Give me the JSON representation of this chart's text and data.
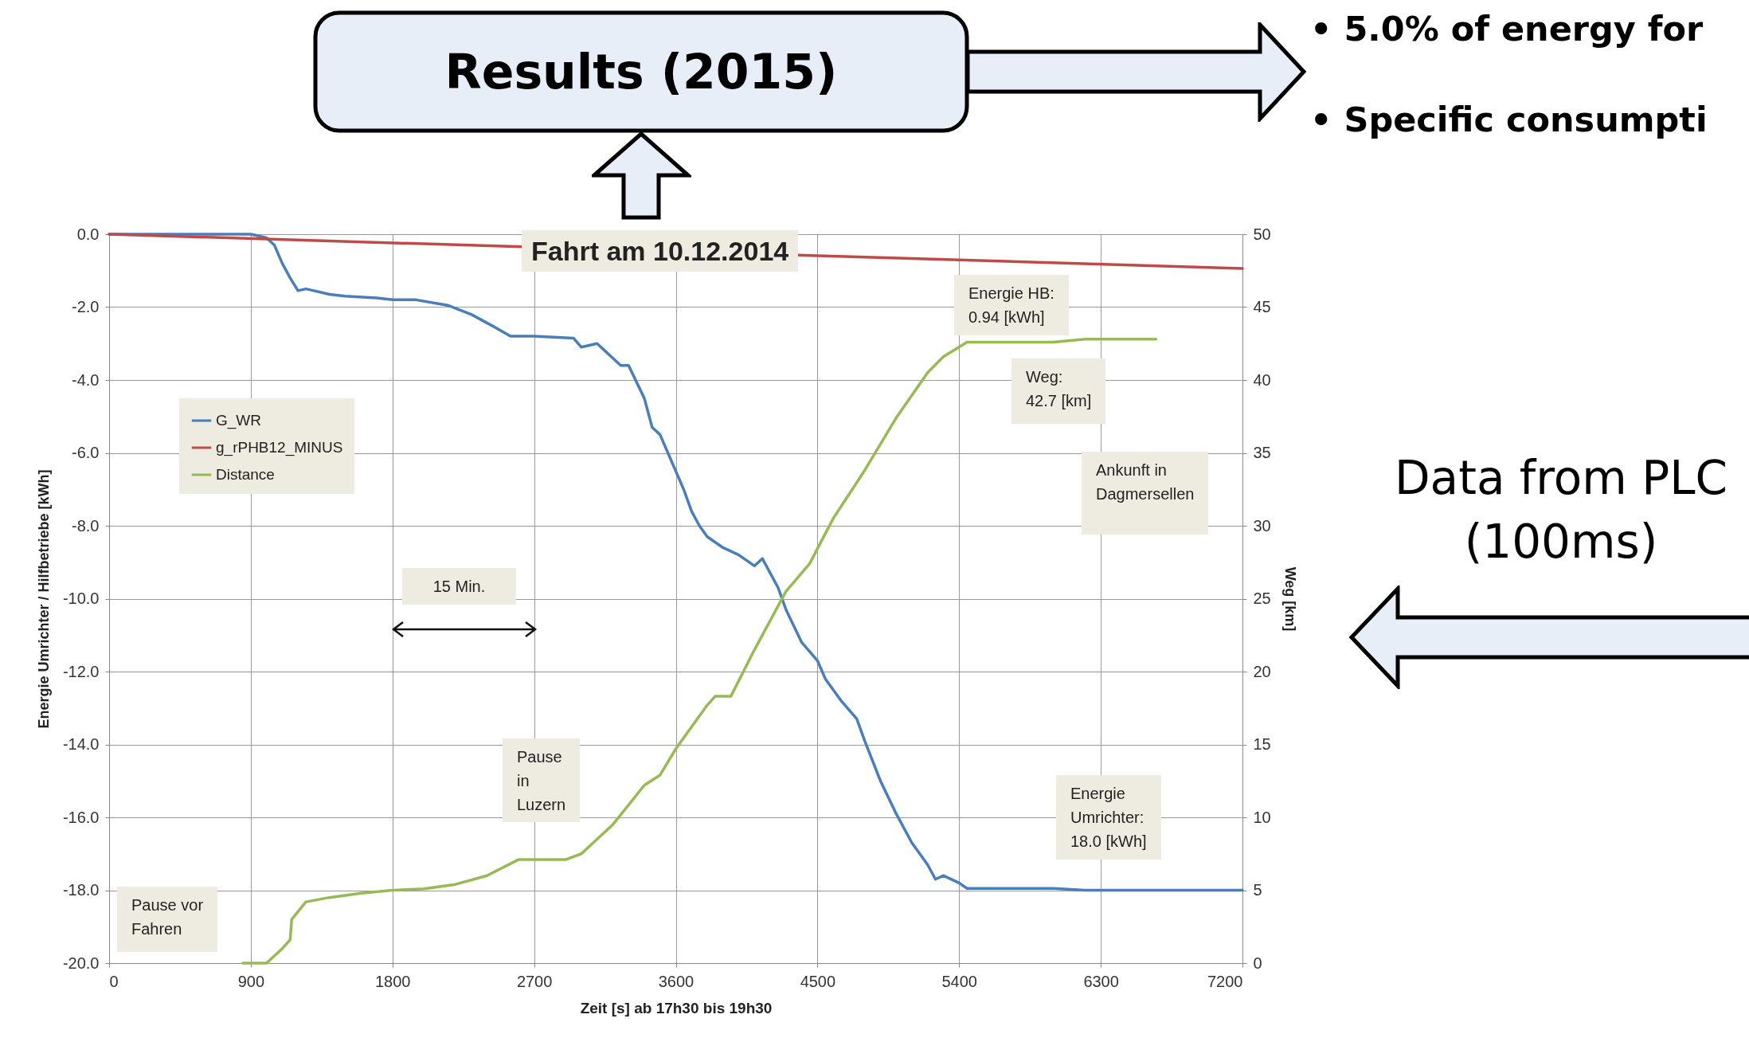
{
  "chart_data": {
    "type": "line",
    "title": "Fahrt am 10.12.2014",
    "xlabel": "Zeit [s] ab 17h30 bis 19h30",
    "ylabel": "Energie Umrichter / Hilfbetriebe [kWh]",
    "y2label": "Weg [km]",
    "xlim": [
      0,
      7200
    ],
    "xticks": [
      0,
      900,
      1800,
      2700,
      3600,
      4500,
      5400,
      6300,
      7200
    ],
    "ylim": [
      -20,
      0
    ],
    "yticks": [
      {
        "value": -20,
        "label": "-20.0"
      },
      {
        "value": -18,
        "label": "-18.0"
      },
      {
        "value": -16,
        "label": "-16.0"
      },
      {
        "value": -14,
        "label": "-14.0"
      },
      {
        "value": -12,
        "label": "-12.0"
      },
      {
        "value": -10,
        "label": "-10.0"
      },
      {
        "value": -8,
        "label": "-8.0"
      },
      {
        "value": -6,
        "label": "-6.0"
      },
      {
        "value": -4,
        "label": "-4.0"
      },
      {
        "value": -2,
        "label": "-2.0"
      },
      {
        "value": 0,
        "label": "0.0"
      }
    ],
    "y2lim": [
      0,
      50
    ],
    "y2ticks": [
      0,
      5,
      10,
      15,
      20,
      25,
      30,
      35,
      40,
      45,
      50
    ],
    "grid": true,
    "legend": "top left",
    "line_style": "solid",
    "series": [
      {
        "name": "G_WR",
        "color": "#4a7ebb",
        "x": [
          0,
          900,
          1000,
          1050,
          1100,
          1150,
          1200,
          1250,
          1300,
          1400,
          1500,
          1700,
          1800,
          1950,
          2150,
          2300,
          2450,
          2550,
          2700,
          2950,
          3000,
          3100,
          3150,
          3250,
          3300,
          3400,
          3450,
          3500,
          3550,
          3600,
          3650,
          3700,
          3750,
          3800,
          3900,
          4000,
          4100,
          4150,
          4250,
          4300,
          4400,
          4500,
          4550,
          4650,
          4750,
          4800,
          4900,
          5000,
          5100,
          5200,
          5250,
          5300,
          5400,
          5450,
          6000,
          6200,
          7200
        ],
        "values": [
          0,
          0,
          -0.1,
          -0.3,
          -0.8,
          -1.2,
          -1.55,
          -1.5,
          -1.55,
          -1.65,
          -1.7,
          -1.75,
          -1.8,
          -1.8,
          -1.95,
          -2.2,
          -2.55,
          -2.8,
          -2.8,
          -2.85,
          -3.1,
          -3.0,
          -3.2,
          -3.6,
          -3.6,
          -4.5,
          -5.3,
          -5.5,
          -6.0,
          -6.5,
          -7.0,
          -7.6,
          -8.0,
          -8.3,
          -8.6,
          -8.8,
          -9.1,
          -8.9,
          -9.7,
          -10.3,
          -11.2,
          -11.7,
          -12.2,
          -12.8,
          -13.3,
          -13.9,
          -15.0,
          -15.9,
          -16.7,
          -17.3,
          -17.7,
          -17.6,
          -17.8,
          -17.95,
          -17.95,
          -18.0,
          -18.0
        ]
      },
      {
        "name": "g_rPHB12_MINUS",
        "color": "#be4b48",
        "x": [
          0,
          2500,
          4500,
          7200
        ],
        "values": [
          0,
          -0.33,
          -0.59,
          -0.94
        ]
      },
      {
        "name": "Distance",
        "color": "#98b954",
        "axis": "y2",
        "x": [
          850,
          1000,
          1100,
          1150,
          1160,
          1250,
          1400,
          1600,
          1800,
          2000,
          2200,
          2400,
          2600,
          2900,
          3000,
          3200,
          3400,
          3500,
          3600,
          3800,
          3850,
          3950,
          4100,
          4300,
          4450,
          4600,
          4800,
          5000,
          5200,
          5300,
          5450,
          6000,
          6200,
          6650
        ],
        "values": [
          0,
          0,
          1,
          1.6,
          3,
          4.2,
          4.5,
          4.8,
          5.0,
          5.1,
          5.4,
          6.0,
          7.1,
          7.1,
          7.5,
          9.5,
          12.2,
          12.9,
          14.7,
          17.7,
          18.3,
          18.3,
          21.5,
          25.5,
          27.4,
          30.5,
          33.8,
          37.4,
          40.5,
          41.6,
          42.6,
          42.6,
          42.8,
          42.8
        ]
      }
    ],
    "annotations": [
      "Results (2015)",
      "• 5.0% of energy for",
      "• Specific consumpti",
      "Data from PLC\n(100ms)",
      "15 Min.",
      "Energie HB:\n0.94 [kWh]",
      "Weg:\n42.7 [km]",
      "Ankunft in\nDagmersellen",
      "Pause vor\nFahren",
      "Pause\nin\nLuzern",
      "Energie\nUmrichter:\n18.0 [kWh]"
    ]
  }
}
